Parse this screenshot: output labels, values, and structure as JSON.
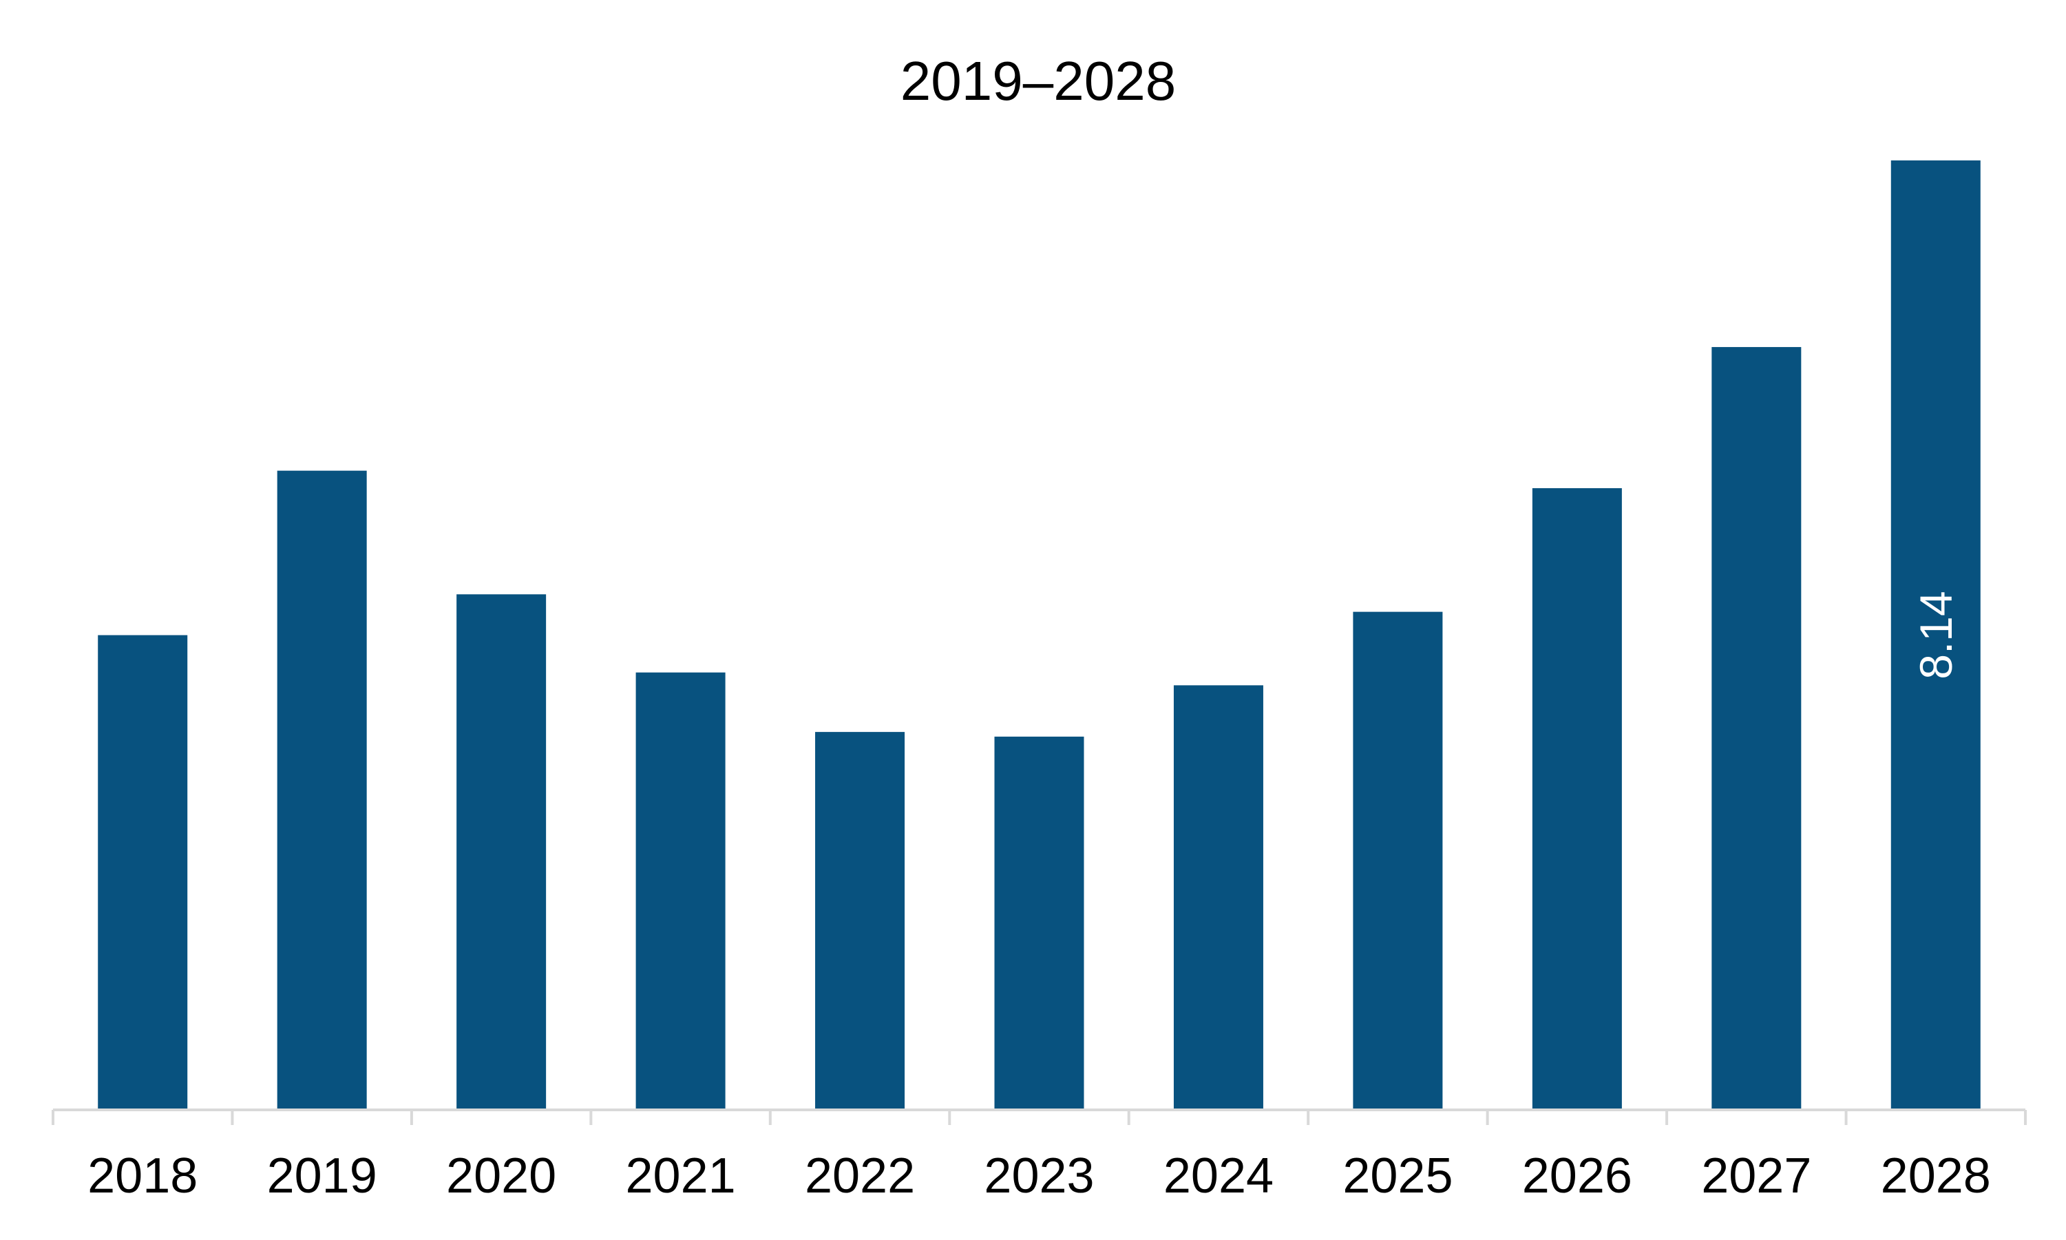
{
  "chart_data": {
    "type": "bar",
    "title": "2019–2028",
    "xlabel": "",
    "ylabel": "",
    "categories": [
      "2018",
      "2019",
      "2020",
      "2021",
      "2022",
      "2023",
      "2024",
      "2025",
      "2026",
      "2027",
      "2028"
    ],
    "values": [
      4.07,
      5.48,
      4.42,
      3.75,
      3.24,
      3.2,
      3.64,
      4.27,
      5.33,
      6.54,
      8.14
    ],
    "data_labels": [
      "",
      "",
      "",
      "",
      "",
      "",
      "",
      "",
      "",
      "",
      "8.14"
    ],
    "ylim": [
      0,
      8.14
    ],
    "grid": false,
    "legend": "none",
    "bar_color": "#08527f",
    "axis_color": "#d9d9d9"
  }
}
